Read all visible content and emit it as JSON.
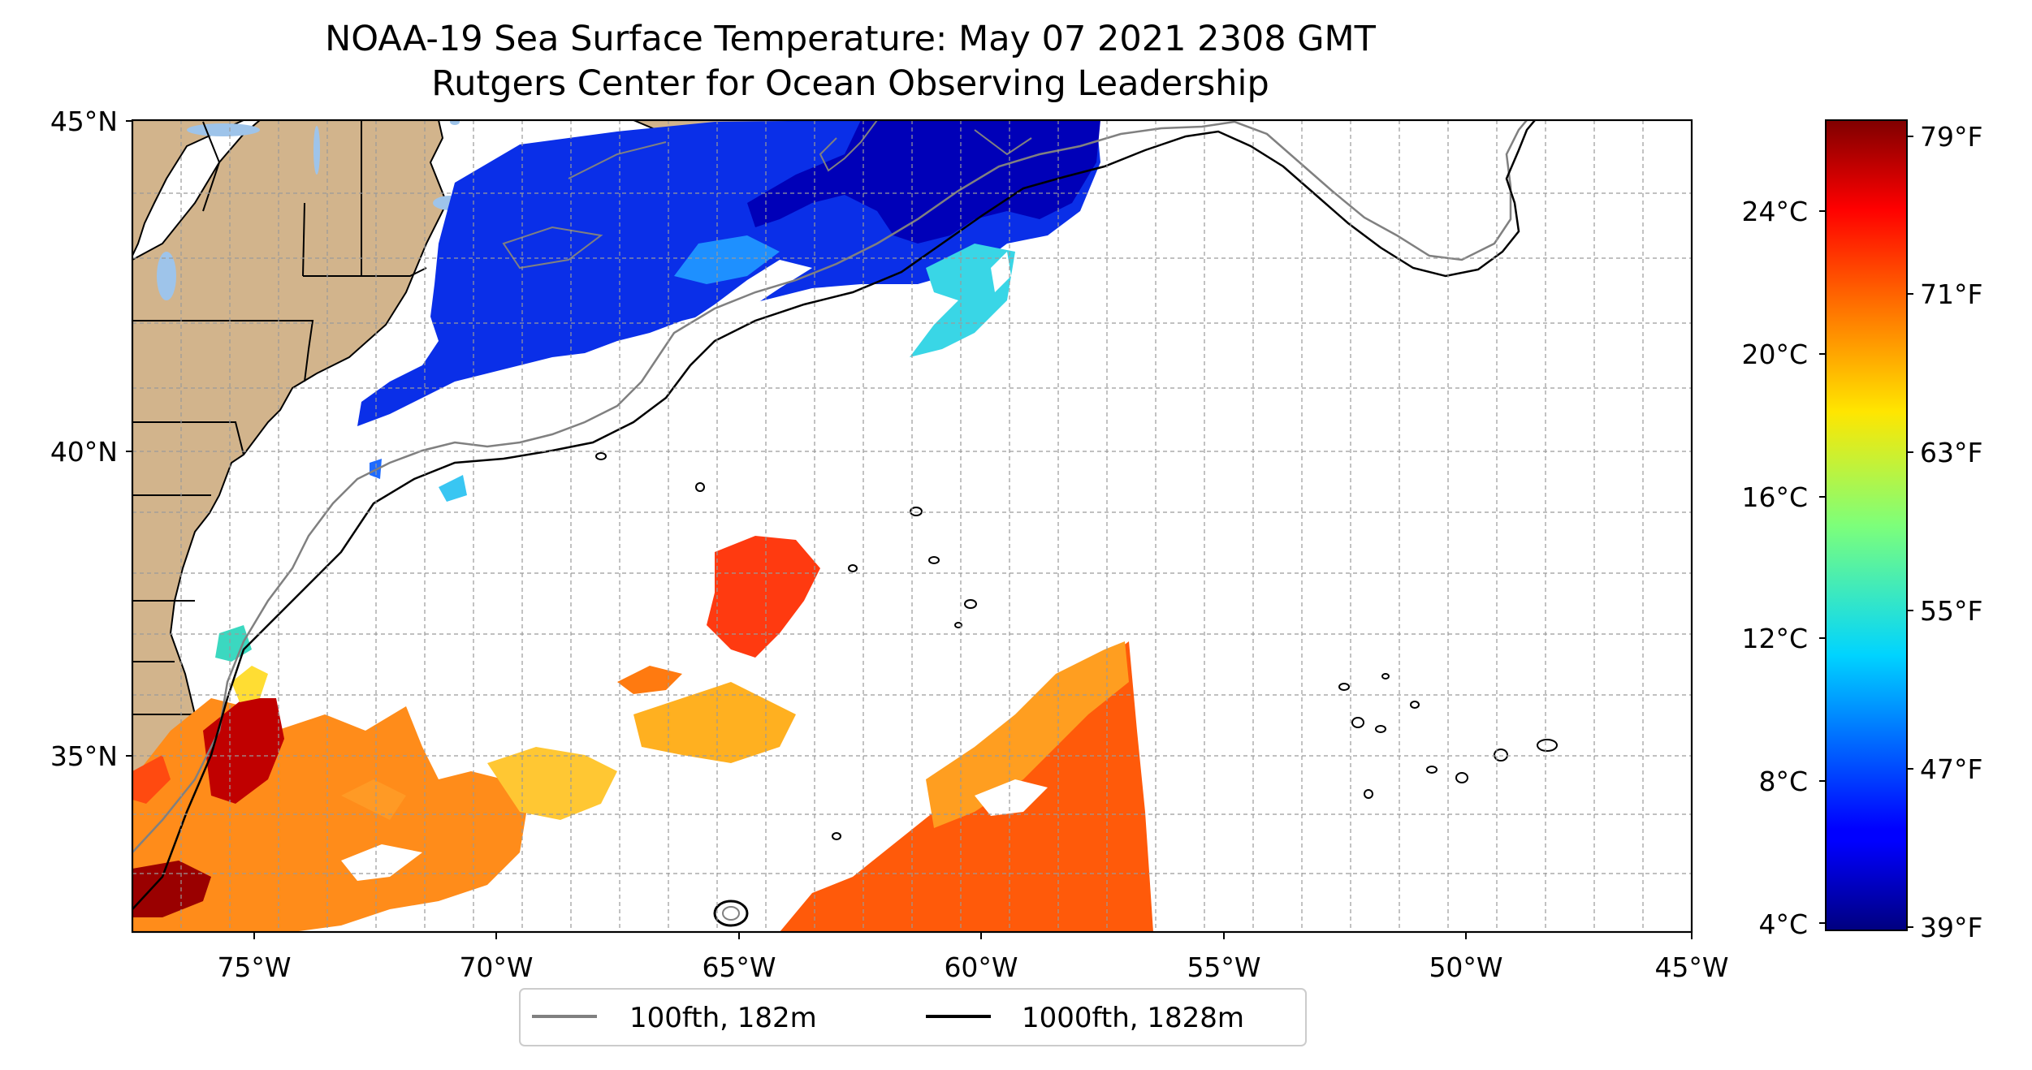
{
  "title": {
    "line1": "NOAA-19 Sea Surface Temperature: May 07 2021 2308 GMT",
    "line2": "Rutgers Center for Ocean Observing Leadership"
  },
  "map": {
    "lat_labels": [
      "45°N",
      "40°N",
      "35°N"
    ],
    "lon_labels": [
      "75°W",
      "70°W",
      "65°W",
      "60°W",
      "55°W",
      "50°W",
      "45°W"
    ],
    "extent": {
      "lon": [
        -77,
        -45
      ],
      "lat": [
        32.2,
        45
      ]
    },
    "gridlines": true,
    "land_color": "#d2b48c",
    "lake_color": "#9ec4ea"
  },
  "legend": {
    "position": "bottom-center",
    "items": [
      {
        "label": "100fth, 182m",
        "color": "#808080"
      },
      {
        "label": "1000fth, 1828m",
        "color": "#000000"
      }
    ]
  },
  "colorbar": {
    "celsius_labels": [
      "24°C",
      "20°C",
      "16°C",
      "12°C",
      "8°C",
      "4°C"
    ],
    "fahrenheit_labels": [
      "79°F",
      "71°F",
      "63°F",
      "55°F",
      "47°F",
      "39°F"
    ],
    "colormap": "jet"
  }
}
